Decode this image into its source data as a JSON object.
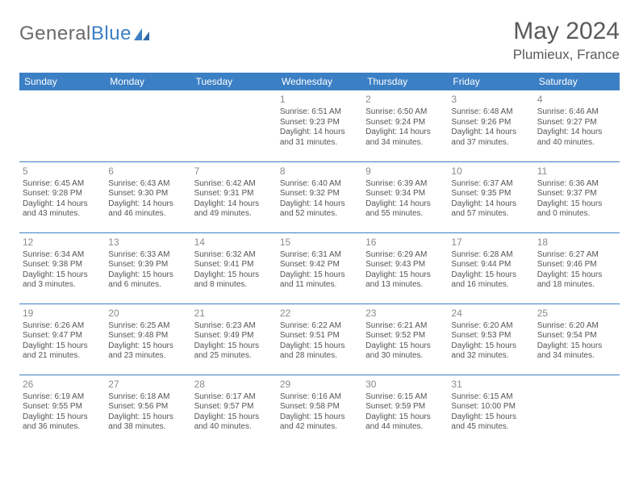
{
  "logo": {
    "text_general": "General",
    "text_blue": "Blue"
  },
  "header": {
    "month_title": "May 2024",
    "location": "Plumieux, France"
  },
  "day_headers": [
    "Sunday",
    "Monday",
    "Tuesday",
    "Wednesday",
    "Thursday",
    "Friday",
    "Saturday"
  ],
  "colors": {
    "header_bg": "#3b7fc4",
    "header_text": "#ffffff",
    "border": "#3b7fc4",
    "text": "#555555",
    "daynum": "#8a8a8a"
  },
  "weeks": [
    [
      null,
      null,
      null,
      {
        "n": "1",
        "sr": "6:51 AM",
        "ss": "9:23 PM",
        "dl": "14 hours and 31 minutes."
      },
      {
        "n": "2",
        "sr": "6:50 AM",
        "ss": "9:24 PM",
        "dl": "14 hours and 34 minutes."
      },
      {
        "n": "3",
        "sr": "6:48 AM",
        "ss": "9:26 PM",
        "dl": "14 hours and 37 minutes."
      },
      {
        "n": "4",
        "sr": "6:46 AM",
        "ss": "9:27 PM",
        "dl": "14 hours and 40 minutes."
      }
    ],
    [
      {
        "n": "5",
        "sr": "6:45 AM",
        "ss": "9:28 PM",
        "dl": "14 hours and 43 minutes."
      },
      {
        "n": "6",
        "sr": "6:43 AM",
        "ss": "9:30 PM",
        "dl": "14 hours and 46 minutes."
      },
      {
        "n": "7",
        "sr": "6:42 AM",
        "ss": "9:31 PM",
        "dl": "14 hours and 49 minutes."
      },
      {
        "n": "8",
        "sr": "6:40 AM",
        "ss": "9:32 PM",
        "dl": "14 hours and 52 minutes."
      },
      {
        "n": "9",
        "sr": "6:39 AM",
        "ss": "9:34 PM",
        "dl": "14 hours and 55 minutes."
      },
      {
        "n": "10",
        "sr": "6:37 AM",
        "ss": "9:35 PM",
        "dl": "14 hours and 57 minutes."
      },
      {
        "n": "11",
        "sr": "6:36 AM",
        "ss": "9:37 PM",
        "dl": "15 hours and 0 minutes."
      }
    ],
    [
      {
        "n": "12",
        "sr": "6:34 AM",
        "ss": "9:38 PM",
        "dl": "15 hours and 3 minutes."
      },
      {
        "n": "13",
        "sr": "6:33 AM",
        "ss": "9:39 PM",
        "dl": "15 hours and 6 minutes."
      },
      {
        "n": "14",
        "sr": "6:32 AM",
        "ss": "9:41 PM",
        "dl": "15 hours and 8 minutes."
      },
      {
        "n": "15",
        "sr": "6:31 AM",
        "ss": "9:42 PM",
        "dl": "15 hours and 11 minutes."
      },
      {
        "n": "16",
        "sr": "6:29 AM",
        "ss": "9:43 PM",
        "dl": "15 hours and 13 minutes."
      },
      {
        "n": "17",
        "sr": "6:28 AM",
        "ss": "9:44 PM",
        "dl": "15 hours and 16 minutes."
      },
      {
        "n": "18",
        "sr": "6:27 AM",
        "ss": "9:46 PM",
        "dl": "15 hours and 18 minutes."
      }
    ],
    [
      {
        "n": "19",
        "sr": "6:26 AM",
        "ss": "9:47 PM",
        "dl": "15 hours and 21 minutes."
      },
      {
        "n": "20",
        "sr": "6:25 AM",
        "ss": "9:48 PM",
        "dl": "15 hours and 23 minutes."
      },
      {
        "n": "21",
        "sr": "6:23 AM",
        "ss": "9:49 PM",
        "dl": "15 hours and 25 minutes."
      },
      {
        "n": "22",
        "sr": "6:22 AM",
        "ss": "9:51 PM",
        "dl": "15 hours and 28 minutes."
      },
      {
        "n": "23",
        "sr": "6:21 AM",
        "ss": "9:52 PM",
        "dl": "15 hours and 30 minutes."
      },
      {
        "n": "24",
        "sr": "6:20 AM",
        "ss": "9:53 PM",
        "dl": "15 hours and 32 minutes."
      },
      {
        "n": "25",
        "sr": "6:20 AM",
        "ss": "9:54 PM",
        "dl": "15 hours and 34 minutes."
      }
    ],
    [
      {
        "n": "26",
        "sr": "6:19 AM",
        "ss": "9:55 PM",
        "dl": "15 hours and 36 minutes."
      },
      {
        "n": "27",
        "sr": "6:18 AM",
        "ss": "9:56 PM",
        "dl": "15 hours and 38 minutes."
      },
      {
        "n": "28",
        "sr": "6:17 AM",
        "ss": "9:57 PM",
        "dl": "15 hours and 40 minutes."
      },
      {
        "n": "29",
        "sr": "6:16 AM",
        "ss": "9:58 PM",
        "dl": "15 hours and 42 minutes."
      },
      {
        "n": "30",
        "sr": "6:15 AM",
        "ss": "9:59 PM",
        "dl": "15 hours and 44 minutes."
      },
      {
        "n": "31",
        "sr": "6:15 AM",
        "ss": "10:00 PM",
        "dl": "15 hours and 45 minutes."
      },
      null
    ]
  ],
  "labels": {
    "sunrise": "Sunrise:",
    "sunset": "Sunset:",
    "daylight": "Daylight:"
  }
}
